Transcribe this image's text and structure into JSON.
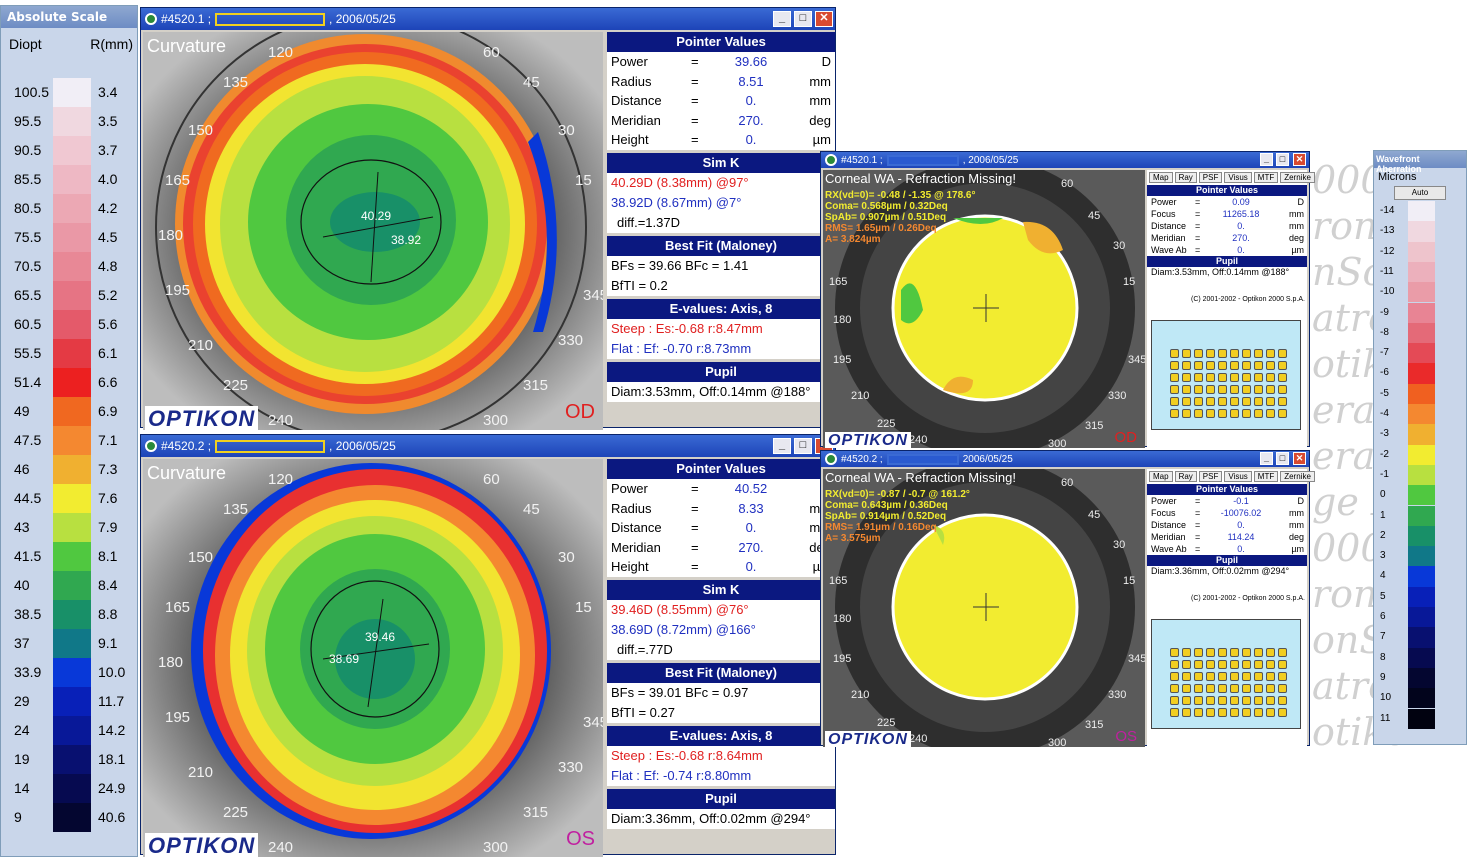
{
  "scale": {
    "title": "Absolute Scale",
    "col1": "Diopt",
    "col2": "R(mm)",
    "rows": [
      {
        "d": "100.5",
        "r": "3.4",
        "c": "#f1eef6"
      },
      {
        "d": "95.5",
        "r": "3.5",
        "c": "#f0d8e0"
      },
      {
        "d": "90.5",
        "r": "3.7",
        "c": "#f0c8d2"
      },
      {
        "d": "85.5",
        "r": "4.0",
        "c": "#eeb8c4"
      },
      {
        "d": "80.5",
        "r": "4.2",
        "c": "#eca8b4"
      },
      {
        "d": "75.5",
        "r": "4.5",
        "c": "#ea98a6"
      },
      {
        "d": "70.5",
        "r": "4.8",
        "c": "#e88896"
      },
      {
        "d": "65.5",
        "r": "5.2",
        "c": "#e67484"
      },
      {
        "d": "60.5",
        "r": "5.6",
        "c": "#e45a6a"
      },
      {
        "d": "55.5",
        "r": "6.1",
        "c": "#e43a44"
      },
      {
        "d": "51.4",
        "r": "6.6",
        "c": "#ec2020"
      },
      {
        "d": "49",
        "r": "6.9",
        "c": "#f06820"
      },
      {
        "d": "47.5",
        "r": "7.1",
        "c": "#f48830"
      },
      {
        "d": "46",
        "r": "7.3",
        "c": "#f0b030"
      },
      {
        "d": "44.5",
        "r": "7.6",
        "c": "#f2ec30"
      },
      {
        "d": "43",
        "r": "7.9",
        "c": "#b8e040"
      },
      {
        "d": "41.5",
        "r": "8.1",
        "c": "#50c840"
      },
      {
        "d": "40",
        "r": "8.4",
        "c": "#30a850"
      },
      {
        "d": "38.5",
        "r": "8.8",
        "c": "#189068"
      },
      {
        "d": "37",
        "r": "9.1",
        "c": "#107888"
      },
      {
        "d": "33.9",
        "r": "10.0",
        "c": "#0838d8"
      },
      {
        "d": "29",
        "r": "11.7",
        "c": "#0820b8"
      },
      {
        "d": "24",
        "r": "14.2",
        "c": "#081898"
      },
      {
        "d": "19",
        "r": "18.1",
        "c": "#081070"
      },
      {
        "d": "14",
        "r": "24.9",
        "c": "#060a50"
      },
      {
        "d": "9",
        "r": "40.6",
        "c": "#040630"
      }
    ]
  },
  "angles": [
    "120",
    "60",
    "135",
    "45",
    "150",
    "30",
    "165",
    "15",
    "180",
    "345",
    "195",
    "330",
    "210",
    "315",
    "225",
    "300",
    "240"
  ],
  "od": {
    "title_id": "#4520.1 ;",
    "date": ", 2006/05/25",
    "map_title": "Curvature",
    "eye": "OD",
    "logo": "OPTIKON",
    "k1": "40.29",
    "k2": "38.92",
    "pointer": {
      "header": "Pointer Values",
      "rows": [
        {
          "l": "Power",
          "eq": "=",
          "v": "39.66",
          "u": "D"
        },
        {
          "l": "Radius",
          "eq": "=",
          "v": "8.51",
          "u": "mm"
        },
        {
          "l": "Distance",
          "eq": "=",
          "v": "0.",
          "u": "mm"
        },
        {
          "l": "Meridian",
          "eq": "=",
          "v": "270.",
          "u": "deg"
        },
        {
          "l": "Height",
          "eq": "=",
          "v": "0.",
          "u": "µm"
        }
      ]
    },
    "simk": {
      "header": "Sim K",
      "steep": "40.29D (8.38mm) @97°",
      "flat": "38.92D (8.67mm) @7°",
      "diff": "diff.=1.37D"
    },
    "bestfit": {
      "header": "Best Fit (Maloney)",
      "l1": "BFs = 39.66  BFc = 1.41",
      "l2": "BfTI = 0.2"
    },
    "evalues": {
      "header": "E-values: Axis, 8",
      "steep": "Steep :  Es:-0.68 r:8.47mm",
      "flat": "Flat    :  Ef: -0.70 r:8.73mm"
    },
    "pupil": {
      "header": "Pupil",
      "text": "Diam:3.53mm, Off:0.14mm @188°"
    }
  },
  "os": {
    "title_id": "#4520.2 ;",
    "date": ", 2006/05/25",
    "map_title": "Curvature",
    "eye": "OS",
    "logo": "OPTIKON",
    "k1": "39.46",
    "k2": "38.69",
    "pointer": {
      "header": "Pointer Values",
      "rows": [
        {
          "l": "Power",
          "eq": "=",
          "v": "40.52",
          "u": "D"
        },
        {
          "l": "Radius",
          "eq": "=",
          "v": "8.33",
          "u": "mm"
        },
        {
          "l": "Distance",
          "eq": "=",
          "v": "0.",
          "u": "mm"
        },
        {
          "l": "Meridian",
          "eq": "=",
          "v": "270.",
          "u": "deg"
        },
        {
          "l": "Height",
          "eq": "=",
          "v": "0.",
          "u": "µm"
        }
      ]
    },
    "simk": {
      "header": "Sim K",
      "steep": "39.46D (8.55mm) @76°",
      "flat": "38.69D (8.72mm) @166°",
      "diff": "diff.=.77D"
    },
    "bestfit": {
      "header": "Best Fit (Maloney)",
      "l1": "BFs = 39.01  BFc = 0.97",
      "l2": "BfTI = 0.27"
    },
    "evalues": {
      "header": "E-values: Axis, 8",
      "steep": "Steep :  Es:-0.68 r:8.64mm",
      "flat": "Flat    :  Ef: -0.74 r:8.80mm"
    },
    "pupil": {
      "header": "Pupil",
      "text": "Diam:3.36mm, Off:0.02mm @294°"
    }
  },
  "wa1": {
    "title_id": "#4520.1 ;",
    "date": ", 2006/05/25",
    "map_title": "Corneal WA - Refraction Missing!",
    "eye": "OD",
    "logo": "OPTIKON",
    "l1": "RX(vd=0)= -0.48 / -1.35 @ 178.6°",
    "l2": "Coma= 0.568µm / 0.32Deq",
    "l3": "SpAb= 0.907µm / 0.51Deq",
    "l4": "RMS= 1.65µm / 0.26Deq",
    "l5": "A= 3.824µm",
    "tabs": [
      "Map",
      "Ray",
      "PSF",
      "Visus",
      "MTF",
      "Zernike"
    ],
    "pointer": {
      "header": "Pointer Values",
      "rows": [
        {
          "l": "Power",
          "eq": "=",
          "v": "0.09",
          "u": "D"
        },
        {
          "l": "Focus",
          "eq": "=",
          "v": "11265.18",
          "u": "mm"
        },
        {
          "l": "Distance",
          "eq": "=",
          "v": "0.",
          "u": "mm"
        },
        {
          "l": "Meridian",
          "eq": "=",
          "v": "270.",
          "u": "deg"
        },
        {
          "l": "Wave Ab",
          "eq": "=",
          "v": "0.",
          "u": "µm"
        }
      ]
    },
    "pupil": {
      "header": "Pupil",
      "text": "Diam:3.53mm, Off:0.14mm @188°"
    },
    "copyright": "(C) 2001-2002 - Optikon 2000 S.p.A."
  },
  "wa2": {
    "title_id": "#4520.2 ;",
    "date": "2006/05/25",
    "map_title": "Corneal WA - Refraction Missing!",
    "eye": "OS",
    "logo": "OPTIKON",
    "l1": "RX(vd=0)= -0.87 / -0.7 @ 161.2°",
    "l2": "Coma= 0.643µm / 0.36Deq",
    "l3": "SpAb= 0.914µm / 0.52Deq",
    "l4": "RMS= 1.91µm / 0.16Deq",
    "l5": "A= 3.575µm",
    "tabs": [
      "Map",
      "Ray",
      "PSF",
      "Visus",
      "MTF",
      "Zernike"
    ],
    "pointer": {
      "header": "Pointer Values",
      "rows": [
        {
          "l": "Power",
          "eq": "=",
          "v": "-0.1",
          "u": "D"
        },
        {
          "l": "Focus",
          "eq": "=",
          "v": "-10076.02",
          "u": "mm"
        },
        {
          "l": "Distance",
          "eq": "=",
          "v": "0.",
          "u": "mm"
        },
        {
          "l": "Meridian",
          "eq": "=",
          "v": "114.24",
          "u": "deg"
        },
        {
          "l": "Wave Ab",
          "eq": "=",
          "v": "0.",
          "u": "µm"
        }
      ]
    },
    "pupil": {
      "header": "Pupil",
      "text": "Diam:3.36mm, Off:0.02mm @294°"
    },
    "copyright": "(C) 2001-2002 - Optikon 2000 S.p.A."
  },
  "wscale": {
    "title": "Wavefront Aberration",
    "unit": "Microns",
    "auto": "Auto",
    "rows": [
      {
        "d": "-14",
        "c": "#f1eef6"
      },
      {
        "d": "-13",
        "c": "#f0d8e0"
      },
      {
        "d": "-12",
        "c": "#eec4cc"
      },
      {
        "d": "-11",
        "c": "#ecb0bc"
      },
      {
        "d": "-10",
        "c": "#ea9ca8"
      },
      {
        "d": "-9",
        "c": "#e88494"
      },
      {
        "d": "-8",
        "c": "#e46a78"
      },
      {
        "d": "-7",
        "c": "#e44a56"
      },
      {
        "d": "-6",
        "c": "#ea2a2a"
      },
      {
        "d": "-5",
        "c": "#f06020"
      },
      {
        "d": "-4",
        "c": "#f48830"
      },
      {
        "d": "-3",
        "c": "#f0b030"
      },
      {
        "d": "-2",
        "c": "#f2ec30"
      },
      {
        "d": "-1",
        "c": "#b8e040"
      },
      {
        "d": "0",
        "c": "#50c840"
      },
      {
        "d": "1",
        "c": "#30a850"
      },
      {
        "d": "2",
        "c": "#189068"
      },
      {
        "d": "3",
        "c": "#107888"
      },
      {
        "d": "4",
        "c": "#0838d8"
      },
      {
        "d": "5",
        "c": "#0820b8"
      },
      {
        "d": "6",
        "c": "#081898"
      },
      {
        "d": "7",
        "c": "#081070"
      },
      {
        "d": "8",
        "c": "#060a50"
      },
      {
        "d": "9",
        "c": "#040630"
      },
      {
        "d": "10",
        "c": "#02041c"
      },
      {
        "d": "11",
        "c": "#010210"
      }
    ]
  },
  "bg_words": [
    "000",
    "ron",
    "nSco",
    "atrol",
    "otiko",
    "era",
    "erat",
    "ge K",
    "000",
    "ron",
    "onSc",
    "atro",
    "otiko"
  ]
}
